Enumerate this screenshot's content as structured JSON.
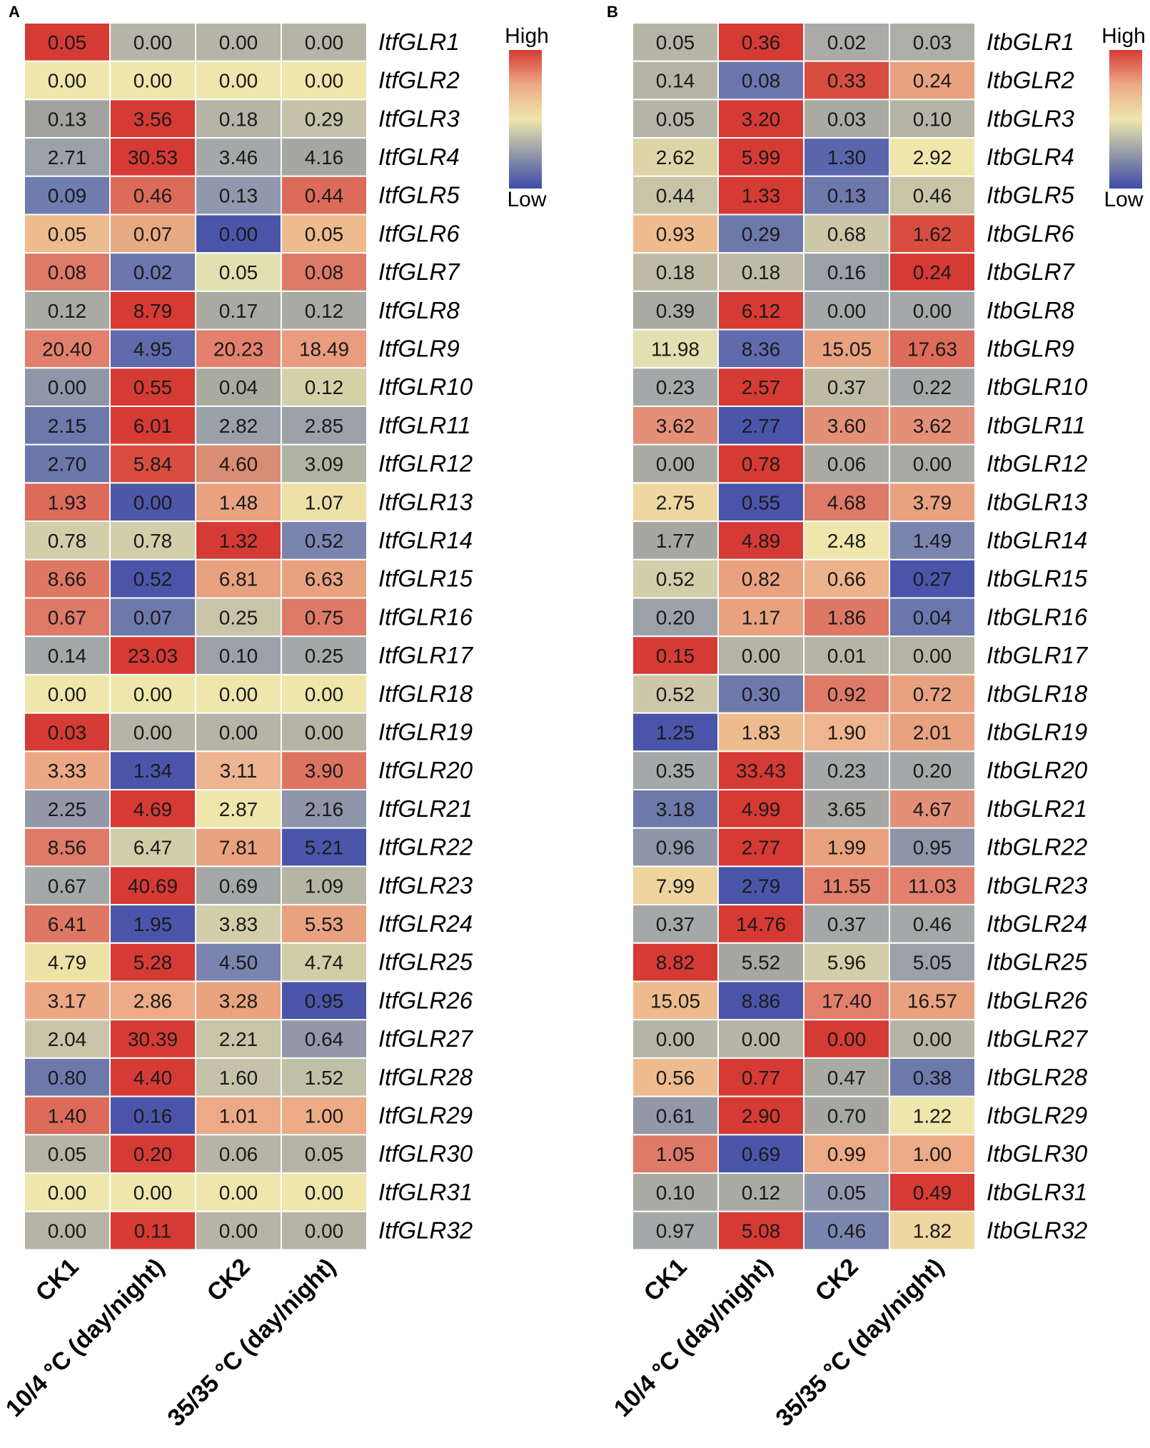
{
  "chart_data": [
    {
      "type": "heatmap",
      "panel_label": "A",
      "columns": [
        "CK1",
        "10/4 °C (day/night)",
        "CK2",
        "35/35 °C (day/night)"
      ],
      "rows": [
        "ItfGLR1",
        "ItfGLR2",
        "ItfGLR3",
        "ItfGLR4",
        "ItfGLR5",
        "ItfGLR6",
        "ItfGLR7",
        "ItfGLR8",
        "ItfGLR9",
        "ItfGLR10",
        "ItfGLR11",
        "ItfGLR12",
        "ItfGLR13",
        "ItfGLR14",
        "ItfGLR15",
        "ItfGLR16",
        "ItfGLR17",
        "ItfGLR18",
        "ItfGLR19",
        "ItfGLR20",
        "ItfGLR21",
        "ItfGLR22",
        "ItfGLR23",
        "ItfGLR24",
        "ItfGLR25",
        "ItfGLR26",
        "ItfGLR27",
        "ItfGLR28",
        "ItfGLR29",
        "ItfGLR30",
        "ItfGLR31",
        "ItfGLR32"
      ],
      "values": [
        [
          "0.05",
          "0.00",
          "0.00",
          "0.00"
        ],
        [
          "0.00",
          "0.00",
          "0.00",
          "0.00"
        ],
        [
          "0.13",
          "3.56",
          "0.18",
          "0.29"
        ],
        [
          "2.71",
          "30.53",
          "3.46",
          "4.16"
        ],
        [
          "0.09",
          "0.46",
          "0.13",
          "0.44"
        ],
        [
          "0.05",
          "0.07",
          "0.00",
          "0.05"
        ],
        [
          "0.08",
          "0.02",
          "0.05",
          "0.08"
        ],
        [
          "0.12",
          "8.79",
          "0.17",
          "0.12"
        ],
        [
          "20.40",
          "4.95",
          "20.23",
          "18.49"
        ],
        [
          "0.00",
          "0.55",
          "0.04",
          "0.12"
        ],
        [
          "2.15",
          "6.01",
          "2.82",
          "2.85"
        ],
        [
          "2.70",
          "5.84",
          "4.60",
          "3.09"
        ],
        [
          "1.93",
          "0.00",
          "1.48",
          "1.07"
        ],
        [
          "0.78",
          "0.78",
          "1.32",
          "0.52"
        ],
        [
          "8.66",
          "0.52",
          "6.81",
          "6.63"
        ],
        [
          "0.67",
          "0.07",
          "0.25",
          "0.75"
        ],
        [
          "0.14",
          "23.03",
          "0.10",
          "0.25"
        ],
        [
          "0.00",
          "0.00",
          "0.00",
          "0.00"
        ],
        [
          "0.03",
          "0.00",
          "0.00",
          "0.00"
        ],
        [
          "3.33",
          "1.34",
          "3.11",
          "3.90"
        ],
        [
          "2.25",
          "4.69",
          "2.87",
          "2.16"
        ],
        [
          "8.56",
          "6.47",
          "7.81",
          "5.21"
        ],
        [
          "0.67",
          "40.69",
          "0.69",
          "1.09"
        ],
        [
          "6.41",
          "1.95",
          "3.83",
          "5.53"
        ],
        [
          "4.79",
          "5.28",
          "4.50",
          "4.74"
        ],
        [
          "3.17",
          "2.86",
          "3.28",
          "0.95"
        ],
        [
          "2.04",
          "30.39",
          "2.21",
          "0.64"
        ],
        [
          "0.80",
          "4.40",
          "1.60",
          "1.52"
        ],
        [
          "1.40",
          "0.16",
          "1.01",
          "1.00"
        ],
        [
          "0.05",
          "0.20",
          "0.06",
          "0.05"
        ],
        [
          "0.00",
          "0.00",
          "0.00",
          "0.00"
        ],
        [
          "0.00",
          "0.11",
          "0.00",
          "0.00"
        ]
      ],
      "colors": [
        [
          "#d63a34",
          "#b5b4a6",
          "#b5b4a6",
          "#b5b4a6"
        ],
        [
          "#efe6ac",
          "#efe6ac",
          "#efe6ac",
          "#efe6ac"
        ],
        [
          "#a2a39e",
          "#d63a34",
          "#b5b4a6",
          "#c4c2a8"
        ],
        [
          "#9ba1a8",
          "#d63a34",
          "#a5a8a8",
          "#a6a7a2"
        ],
        [
          "#6f7cae",
          "#dc6b5a",
          "#8f98ae",
          "#dc6b5a"
        ],
        [
          "#eebb8e",
          "#e8aa82",
          "#4a55aa",
          "#eebb8e"
        ],
        [
          "#de7a68",
          "#6b75ae",
          "#e2dfb0",
          "#de7a68"
        ],
        [
          "#a9aaa2",
          "#d63a34",
          "#a9aaa2",
          "#a9aaa2"
        ],
        [
          "#e3806d",
          "#5f6bad",
          "#e3816e",
          "#e99c7e"
        ],
        [
          "#8f96a8",
          "#d63a34",
          "#a9ab9f",
          "#d4d1a9"
        ],
        [
          "#6d79ab",
          "#d63a34",
          "#9aa0aa",
          "#9ca1a8"
        ],
        [
          "#6c78ab",
          "#d94d41",
          "#d88d74",
          "#b0b2a3"
        ],
        [
          "#dc6b5a",
          "#4d57a7",
          "#e8a280",
          "#ede0a6"
        ],
        [
          "#d2ceaa",
          "#d2ceaa",
          "#d63a34",
          "#7b84ae"
        ],
        [
          "#df7765",
          "#4a55aa",
          "#e8a280",
          "#e8a280"
        ],
        [
          "#de7a68",
          "#6d79ab",
          "#c8c4a8",
          "#de7a68"
        ],
        [
          "#a5a8a8",
          "#d63a34",
          "#9ca1a8",
          "#a5a8a8"
        ],
        [
          "#efe6ac",
          "#efe6ac",
          "#efe6ac",
          "#efe6ac"
        ],
        [
          "#d63a34",
          "#b5b4a6",
          "#b5b4a6",
          "#b5b4a6"
        ],
        [
          "#eca885",
          "#4a55aa",
          "#eeb390",
          "#dd7462"
        ],
        [
          "#9398a9",
          "#d63a34",
          "#efe6ac",
          "#8e95a9"
        ],
        [
          "#de7a68",
          "#d1cda9",
          "#e8a280",
          "#4a55aa"
        ],
        [
          "#a5a8a8",
          "#d63a34",
          "#a5a8a8",
          "#b5b5a5"
        ],
        [
          "#df7765",
          "#4a55aa",
          "#d2ceaa",
          "#e8a280"
        ],
        [
          "#ede1a6",
          "#d63a34",
          "#7b84ae",
          "#d1cda9"
        ],
        [
          "#eca885",
          "#ecab86",
          "#e9a37e",
          "#4a55aa"
        ],
        [
          "#c8c4a8",
          "#d63a34",
          "#c8c4a8",
          "#9398a9"
        ],
        [
          "#6d79ab",
          "#d63a34",
          "#c4c2a8",
          "#c0bfa8"
        ],
        [
          "#dc6b5a",
          "#4a55aa",
          "#ecab86",
          "#ecab86"
        ],
        [
          "#b5b4a6",
          "#d63a34",
          "#b5b4a6",
          "#b5b4a6"
        ],
        [
          "#efe6ac",
          "#efe6ac",
          "#efe6ac",
          "#efe6ac"
        ],
        [
          "#b5b4a6",
          "#d63a34",
          "#b5b4a6",
          "#b5b4a6"
        ]
      ]
    },
    {
      "type": "heatmap",
      "panel_label": "B",
      "columns": [
        "CK1",
        "10/4 °C (day/night)",
        "CK2",
        "35/35 °C (day/night)"
      ],
      "rows": [
        "ItbGLR1",
        "ItbGLR2",
        "ItbGLR3",
        "ItbGLR4",
        "ItbGLR5",
        "ItbGLR6",
        "ItbGLR7",
        "ItbGLR8",
        "ItbGLR9",
        "ItbGLR10",
        "ItbGLR11",
        "ItbGLR12",
        "ItbGLR13",
        "ItbGLR14",
        "ItbGLR15",
        "ItbGLR16",
        "ItbGLR17",
        "ItbGLR18",
        "ItbGLR19",
        "ItbGLR20",
        "ItbGLR21",
        "ItbGLR22",
        "ItbGLR23",
        "ItbGLR24",
        "ItbGLR25",
        "ItbGLR26",
        "ItbGLR27",
        "ItbGLR28",
        "ItbGLR29",
        "ItbGLR30",
        "ItbGLR31",
        "ItbGLR32"
      ],
      "values": [
        [
          "0.05",
          "0.36",
          "0.02",
          "0.03"
        ],
        [
          "0.14",
          "0.08",
          "0.33",
          "0.24"
        ],
        [
          "0.05",
          "3.20",
          "0.03",
          "0.10"
        ],
        [
          "2.62",
          "5.99",
          "1.30",
          "2.92"
        ],
        [
          "0.44",
          "1.33",
          "0.13",
          "0.46"
        ],
        [
          "0.93",
          "0.29",
          "0.68",
          "1.62"
        ],
        [
          "0.18",
          "0.18",
          "0.16",
          "0.24"
        ],
        [
          "0.39",
          "6.12",
          "0.00",
          "0.00"
        ],
        [
          "11.98",
          "8.36",
          "15.05",
          "17.63"
        ],
        [
          "0.23",
          "2.57",
          "0.37",
          "0.22"
        ],
        [
          "3.62",
          "2.77",
          "3.60",
          "3.62"
        ],
        [
          "0.00",
          "0.78",
          "0.06",
          "0.00"
        ],
        [
          "2.75",
          "0.55",
          "4.68",
          "3.79"
        ],
        [
          "1.77",
          "4.89",
          "2.48",
          "1.49"
        ],
        [
          "0.52",
          "0.82",
          "0.66",
          "0.27"
        ],
        [
          "0.20",
          "1.17",
          "1.86",
          "0.04"
        ],
        [
          "0.15",
          "0.00",
          "0.01",
          "0.00"
        ],
        [
          "0.52",
          "0.30",
          "0.92",
          "0.72"
        ],
        [
          "1.25",
          "1.83",
          "1.90",
          "2.01"
        ],
        [
          "0.35",
          "33.43",
          "0.23",
          "0.20"
        ],
        [
          "3.18",
          "4.99",
          "3.65",
          "4.67"
        ],
        [
          "0.96",
          "2.77",
          "1.99",
          "0.95"
        ],
        [
          "7.99",
          "2.79",
          "11.55",
          "11.03"
        ],
        [
          "0.37",
          "14.76",
          "0.37",
          "0.46"
        ],
        [
          "8.82",
          "5.52",
          "5.96",
          "5.05"
        ],
        [
          "15.05",
          "8.86",
          "17.40",
          "16.57"
        ],
        [
          "0.00",
          "0.00",
          "0.00",
          "0.00"
        ],
        [
          "0.56",
          "0.77",
          "0.47",
          "0.38"
        ],
        [
          "0.61",
          "2.90",
          "0.70",
          "1.22"
        ],
        [
          "1.05",
          "0.69",
          "0.99",
          "1.00"
        ],
        [
          "0.10",
          "0.12",
          "0.05",
          "0.49"
        ],
        [
          "0.97",
          "5.08",
          "0.46",
          "1.82"
        ]
      ],
      "colors": [
        [
          "#b5b4a6",
          "#d63a34",
          "#aaaaa6",
          "#adaea6"
        ],
        [
          "#b5b4a6",
          "#6b75ae",
          "#d94d41",
          "#e8a280"
        ],
        [
          "#b5b4a6",
          "#d63a34",
          "#a9aaa2",
          "#b5b4a6"
        ],
        [
          "#ddd4a8",
          "#d63a34",
          "#5a66ab",
          "#efe6ac"
        ],
        [
          "#c8c4a8",
          "#d63a34",
          "#6d79ab",
          "#c8c4a8"
        ],
        [
          "#eebb8e",
          "#6d79ab",
          "#cbc7a8",
          "#d94d41"
        ],
        [
          "#bdbba6",
          "#bdbba6",
          "#9ca1a8",
          "#d63a34"
        ],
        [
          "#a9aaa2",
          "#d63a34",
          "#a5a8a8",
          "#a5a8a8"
        ],
        [
          "#e2dfb0",
          "#5f6bad",
          "#e8a280",
          "#dd6b5a"
        ],
        [
          "#a5a8a8",
          "#d63a34",
          "#bdbba6",
          "#a5a8a8"
        ],
        [
          "#e39078",
          "#4a55aa",
          "#e39078",
          "#e39078"
        ],
        [
          "#a9aaa2",
          "#d63a34",
          "#a9aaa2",
          "#a9aaa2"
        ],
        [
          "#efd7a0",
          "#4a55aa",
          "#de7a68",
          "#e8a280"
        ],
        [
          "#a6a7a2",
          "#d63a34",
          "#efe6ac",
          "#7b84ae"
        ],
        [
          "#d2ceaa",
          "#e8a280",
          "#ecb38c",
          "#4a55aa"
        ],
        [
          "#9ca1a8",
          "#e8a280",
          "#df7765",
          "#6b75ae"
        ],
        [
          "#d63a34",
          "#b5b4a6",
          "#b5b4a6",
          "#b5b4a6"
        ],
        [
          "#cbc7a8",
          "#6d79ab",
          "#de7a68",
          "#e8a280"
        ],
        [
          "#4a55aa",
          "#eebb8e",
          "#eeb590",
          "#e8a280"
        ],
        [
          "#a5a8a8",
          "#d63a34",
          "#a5a8a8",
          "#a5a8a8"
        ],
        [
          "#6d79ab",
          "#d63a34",
          "#a6a7a2",
          "#e39078"
        ],
        [
          "#8e95a9",
          "#d63a34",
          "#e8a280",
          "#8e95a9"
        ],
        [
          "#efd4a0",
          "#4a55aa",
          "#e3806d",
          "#e3816e"
        ],
        [
          "#a5a8a8",
          "#d63a34",
          "#a5a8a8",
          "#a5a8a8"
        ],
        [
          "#d63a34",
          "#a6a7a2",
          "#d2ceaa",
          "#9ca1a8"
        ],
        [
          "#eebb8e",
          "#4a55aa",
          "#e3806d",
          "#e8a280"
        ],
        [
          "#b5b4a6",
          "#b5b4a6",
          "#d63a34",
          "#b5b4a6"
        ],
        [
          "#eebb8e",
          "#d63a34",
          "#a9aaa2",
          "#6d79ab"
        ],
        [
          "#9398a9",
          "#d63a34",
          "#a6a7a2",
          "#efe6ac"
        ],
        [
          "#de7a68",
          "#4a55aa",
          "#ecab86",
          "#ecab86"
        ],
        [
          "#a9aaa2",
          "#a9aaa2",
          "#8f98ae",
          "#d63a34"
        ],
        [
          "#a5a8a8",
          "#d63a34",
          "#7b84ae",
          "#efd7a0"
        ]
      ]
    }
  ],
  "legend": {
    "high_label": "High",
    "low_label": "Low",
    "gradient": [
      "#d63a34",
      "#ecaa86",
      "#efe6ac",
      "#9399a8",
      "#3f4aaa"
    ]
  }
}
